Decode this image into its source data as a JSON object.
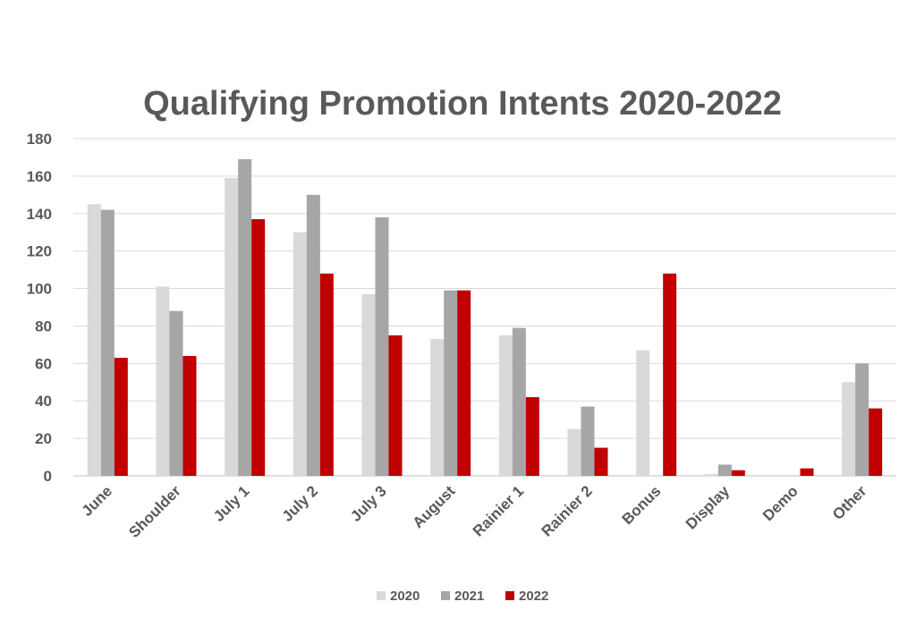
{
  "chart_data": {
    "type": "bar",
    "title": "Qualifying Promotion Intents 2020-2022",
    "xlabel": "",
    "ylabel": "",
    "ylim": [
      0,
      180
    ],
    "yticks": [
      0,
      20,
      40,
      60,
      80,
      100,
      120,
      140,
      160,
      180
    ],
    "grid": true,
    "legend_position": "bottom",
    "categories": [
      "June",
      "Shoulder",
      "July 1",
      "July 2",
      "July 3",
      "August",
      "Rainier 1",
      "Rainier 2",
      "Bonus",
      "Display",
      "Demo",
      "Other"
    ],
    "series": [
      {
        "name": "2020",
        "color": "#d9d9d9",
        "values": [
          145,
          101,
          159,
          130,
          97,
          73,
          75,
          25,
          67,
          1,
          0,
          50
        ]
      },
      {
        "name": "2021",
        "color": "#a6a6a6",
        "values": [
          142,
          88,
          169,
          150,
          138,
          99,
          79,
          37,
          0,
          6,
          0,
          60
        ]
      },
      {
        "name": "2022",
        "color": "#c00000",
        "values": [
          63,
          64,
          137,
          108,
          75,
          99,
          42,
          15,
          108,
          3,
          4,
          36
        ]
      }
    ]
  }
}
